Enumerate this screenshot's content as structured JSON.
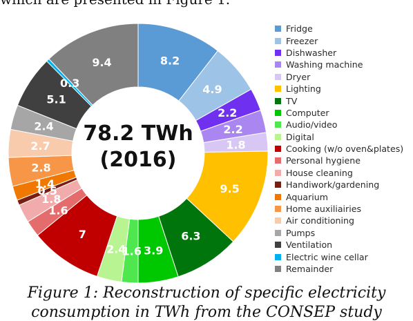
{
  "intro_text": "which are presented in Figure 1.",
  "caption": {
    "line1": "Figure 1: Reconstruction of specific electricity",
    "line2": "consumption in TWh from the CONSEP study"
  },
  "chart_data": {
    "type": "pie",
    "donut": true,
    "center_total": "78.2 TWh",
    "center_year": "(2016)",
    "legend_position": "right",
    "categories": [
      "Fridge",
      "Freezer",
      "Dishwasher",
      "Washing machine",
      "Dryer",
      "Lighting",
      "TV",
      "Computer",
      "Audio/video",
      "Digital",
      "Cooking (w/o oven&plates)",
      "Personal hygiene",
      "House cleaning",
      "Handiwork/gardening",
      "Aquarium",
      "Home auxiliairies",
      "Air conditioning",
      "Pumps",
      "Ventilation",
      "Electric wine cellar",
      "Remainder"
    ],
    "values": [
      8.2,
      4.9,
      2.2,
      2.2,
      1.8,
      9.5,
      6.3,
      3.9,
      1.6,
      2.4,
      7,
      1.6,
      1.8,
      0.5,
      1.4,
      2.8,
      2.7,
      2.4,
      5.1,
      0.3,
      9.4
    ],
    "data_labels": [
      "8.2",
      "4.9",
      "2.2",
      "2.2",
      "1.8",
      "9.5",
      "6.3",
      "3.9",
      "1.6",
      "2.4",
      "7",
      "1.6",
      "1.8",
      "0.5",
      "1.4",
      "2.8",
      "2.7",
      "2.4",
      "5.1",
      "0.3",
      "9.4"
    ],
    "colors": [
      "#5b9bd5",
      "#9dc3e6",
      "#7030f0",
      "#a986f0",
      "#d8c6f4",
      "#ffc000",
      "#00750c",
      "#00c800",
      "#4ee84e",
      "#b8f592",
      "#c00000",
      "#e46c6c",
      "#f2abab",
      "#7a1e14",
      "#f07800",
      "#f79646",
      "#f8cbad",
      "#a6a6a6",
      "#404040",
      "#00b0f0",
      "#808080"
    ],
    "label_colors": [
      "#ffffff",
      "#ffffff",
      "#ffffff",
      "#ffffff",
      "#ffffff",
      "#ffffff",
      "#ffffff",
      "#ffffff",
      "#ffffff",
      "#ffffff",
      "#ffffff",
      "#ffffff",
      "#ffffff",
      "#ffffff",
      "#ffffff",
      "#ffffff",
      "#ffffff",
      "#ffffff",
      "#ffffff",
      "#ffffff",
      "#ffffff"
    ]
  }
}
